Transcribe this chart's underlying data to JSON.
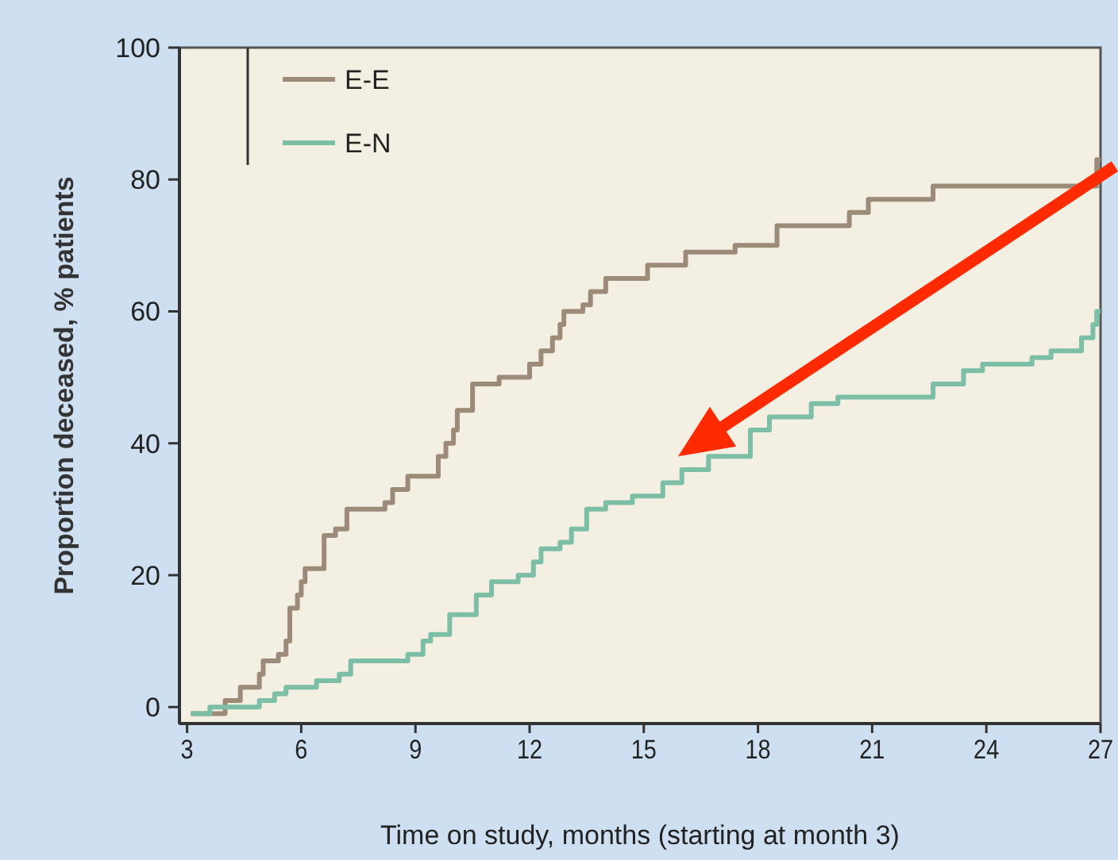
{
  "chart_data": {
    "type": "step",
    "xlabel": "Time on study, months (starting at month 3)",
    "ylabel": "Proportion deceased, % patients",
    "xlim": [
      2.8,
      27
    ],
    "ylim": [
      -2.5,
      100
    ],
    "xticks": [
      3,
      6,
      9,
      12,
      15,
      18,
      21,
      24,
      27
    ],
    "yticks": [
      0,
      20,
      40,
      60,
      80,
      100
    ],
    "legend": "top left",
    "grid": false,
    "series": [
      {
        "name": "E-E",
        "color": "#9c8b79",
        "x": [
          3.1,
          4.0,
          4.4,
          4.9,
          5.0,
          5.4,
          5.6,
          5.7,
          5.9,
          6.0,
          6.1,
          6.6,
          6.9,
          7.2,
          8.2,
          8.4,
          8.8,
          9.6,
          9.6,
          9.8,
          10.0,
          10.1,
          10.5,
          11.2,
          12.0,
          12.3,
          12.6,
          12.8,
          12.9,
          13.4,
          13.6,
          14.0,
          15.1,
          16.1,
          17.4,
          18.5,
          20.4,
          20.9,
          22.6,
          26.9,
          27
        ],
        "values": [
          -1,
          1,
          3,
          5,
          7,
          8,
          10,
          15,
          17,
          19,
          21,
          26,
          27,
          30,
          31,
          33,
          35,
          36,
          38,
          40,
          42,
          45,
          49,
          50,
          52,
          54,
          56,
          58,
          60,
          61,
          63,
          65,
          67,
          69,
          70,
          73,
          75,
          77,
          79,
          83,
          83
        ]
      },
      {
        "name": "E-N",
        "color": "#7dbfa6",
        "x": [
          3.1,
          3.6,
          4.9,
          5.3,
          5.6,
          6.4,
          7.0,
          7.3,
          8.4,
          8.8,
          9.2,
          9.4,
          9.9,
          10.6,
          11.0,
          11.7,
          12.1,
          12.3,
          12.8,
          13.1,
          13.5,
          14.0,
          14.7,
          15.5,
          16.0,
          16.7,
          17.8,
          18.3,
          19.4,
          20.1,
          21.3,
          22.6,
          23.4,
          23.9,
          25.2,
          25.7,
          26.5,
          26.8,
          26.9,
          27
        ],
        "values": [
          -1,
          0,
          1,
          2,
          3,
          4,
          5,
          7,
          7,
          8,
          10,
          11,
          14,
          17,
          19,
          20,
          22,
          24,
          25,
          27,
          30,
          31,
          32,
          34,
          36,
          38,
          42,
          44,
          46,
          47,
          47,
          49,
          51,
          52,
          53,
          54,
          56,
          58,
          60,
          60
        ]
      }
    ]
  }
}
